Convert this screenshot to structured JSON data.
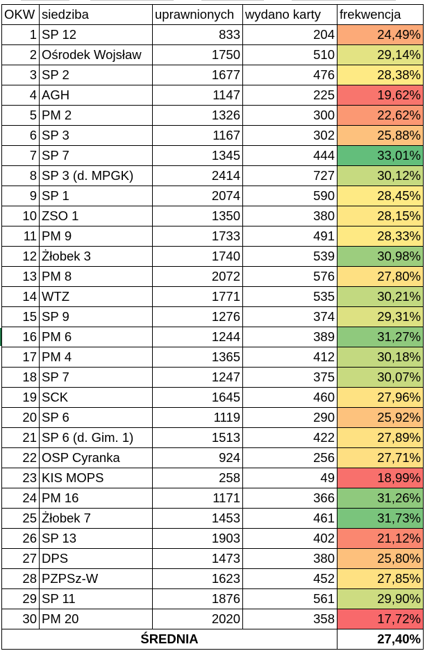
{
  "headers": {
    "okw": "OKW",
    "siedziba": "siedziba",
    "uprawnionych": "uprawnionych",
    "wydano": "wydano karty",
    "frekwencja": "frekwencja"
  },
  "rows": [
    {
      "okw": "1",
      "siedziba": "SP 12",
      "uprawnionych": "833",
      "wydano": "204",
      "frekwencja": "24,49%",
      "color": "#fcaa78"
    },
    {
      "okw": "2",
      "siedziba": "Ośrodek Wojsław",
      "uprawnionych": "1750",
      "wydano": "510",
      "frekwencja": "29,14%",
      "color": "#e3e383"
    },
    {
      "okw": "3",
      "siedziba": "SP 2",
      "uprawnionych": "1677",
      "wydano": "476",
      "frekwencja": "28,38%",
      "color": "#feea84"
    },
    {
      "okw": "4",
      "siedziba": "AGH",
      "uprawnionych": "1147",
      "wydano": "225",
      "frekwencja": "19,62%",
      "color": "#f8756d"
    },
    {
      "okw": "5",
      "siedziba": "PM 2",
      "uprawnionych": "1326",
      "wydano": "300",
      "frekwencja": "22,62%",
      "color": "#fb9873"
    },
    {
      "okw": "6",
      "siedziba": "SP 3",
      "uprawnionych": "1167",
      "wydano": "302",
      "frekwencja": "25,88%",
      "color": "#fdc17d"
    },
    {
      "okw": "7",
      "siedziba": "SP 7",
      "uprawnionych": "1345",
      "wydano": "444",
      "frekwencja": "33,01%",
      "color": "#63be7b"
    },
    {
      "okw": "8",
      "siedziba": "SP 3 (d. MPGK)",
      "uprawnionych": "2414",
      "wydano": "727",
      "frekwencja": "30,12%",
      "color": "#c6da80"
    },
    {
      "okw": "9",
      "siedziba": "SP 1",
      "uprawnionych": "2074",
      "wydano": "590",
      "frekwencja": "28,45%",
      "color": "#feea84"
    },
    {
      "okw": "10",
      "siedziba": "ZSO 1",
      "uprawnionych": "1350",
      "wydano": "380",
      "frekwencja": "28,15%",
      "color": "#fee683"
    },
    {
      "okw": "11",
      "siedziba": "PM 9",
      "uprawnionych": "1733",
      "wydano": "491",
      "frekwencja": "28,33%",
      "color": "#fee983"
    },
    {
      "okw": "12",
      "siedziba": "Żłobek 3",
      "uprawnionych": "1740",
      "wydano": "539",
      "frekwencja": "30,98%",
      "color": "#9ccd7e"
    },
    {
      "okw": "13",
      "siedziba": "PM 8",
      "uprawnionych": "2072",
      "wydano": "576",
      "frekwencja": "27,80%",
      "color": "#fee082"
    },
    {
      "okw": "14",
      "siedziba": "WTZ",
      "uprawnionych": "1771",
      "wydano": "535",
      "frekwencja": "30,21%",
      "color": "#c2d980"
    },
    {
      "okw": "15",
      "siedziba": "SP 9",
      "uprawnionych": "1276",
      "wydano": "374",
      "frekwencja": "29,31%",
      "color": "#dde182"
    },
    {
      "okw": "16",
      "siedziba": "PM 6",
      "uprawnionych": "1244",
      "wydano": "389",
      "frekwencja": "31,27%",
      "color": "#8fc97d"
    },
    {
      "okw": "17",
      "siedziba": "PM 4",
      "uprawnionych": "1365",
      "wydano": "412",
      "frekwencja": "30,18%",
      "color": "#c3d980"
    },
    {
      "okw": "18",
      "siedziba": "SP 7",
      "uprawnionych": "1247",
      "wydano": "375",
      "frekwencja": "30,07%",
      "color": "#c8da80"
    },
    {
      "okw": "19",
      "siedziba": "SCK",
      "uprawnionych": "1645",
      "wydano": "460",
      "frekwencja": "27,96%",
      "color": "#fee282"
    },
    {
      "okw": "20",
      "siedziba": "SP 6",
      "uprawnionych": "1119",
      "wydano": "290",
      "frekwencja": "25,92%",
      "color": "#fdc27d"
    },
    {
      "okw": "21",
      "siedziba": "SP 6 (d. Gim. 1)",
      "uprawnionych": "1513",
      "wydano": "422",
      "frekwencja": "27,89%",
      "color": "#fee182"
    },
    {
      "okw": "22",
      "siedziba": "OSP Cyranka",
      "uprawnionych": "924",
      "wydano": "256",
      "frekwencja": "27,71%",
      "color": "#fedf82"
    },
    {
      "okw": "23",
      "siedziba": "KIS MOPS",
      "uprawnionych": "258",
      "wydano": "49",
      "frekwencja": "18,99%",
      "color": "#f8706c"
    },
    {
      "okw": "24",
      "siedziba": "PM 16",
      "uprawnionych": "1171",
      "wydano": "366",
      "frekwencja": "31,26%",
      "color": "#8fc97d"
    },
    {
      "okw": "25",
      "siedziba": "Żłobek 7",
      "uprawnionych": "1453",
      "wydano": "461",
      "frekwencja": "31,73%",
      "color": "#7ac47c"
    },
    {
      "okw": "26",
      "siedziba": "SP 13",
      "uprawnionych": "1903",
      "wydano": "402",
      "frekwencja": "21,12%",
      "color": "#fa8770"
    },
    {
      "okw": "27",
      "siedziba": "DPS",
      "uprawnionych": "1473",
      "wydano": "380",
      "frekwencja": "25,80%",
      "color": "#fdc07c"
    },
    {
      "okw": "28",
      "siedziba": "PZPSz-W",
      "uprawnionych": "1623",
      "wydano": "452",
      "frekwencja": "27,85%",
      "color": "#fee182"
    },
    {
      "okw": "29",
      "siedziba": "SP 11",
      "uprawnionych": "1876",
      "wydano": "561",
      "frekwencja": "29,90%",
      "color": "#cddc81"
    },
    {
      "okw": "30",
      "siedziba": "PM 20",
      "uprawnionych": "2020",
      "wydano": "358",
      "frekwencja": "17,72%",
      "color": "#f8696b"
    }
  ],
  "footer": {
    "label": "ŚREDNIA",
    "value": "27,40%"
  }
}
